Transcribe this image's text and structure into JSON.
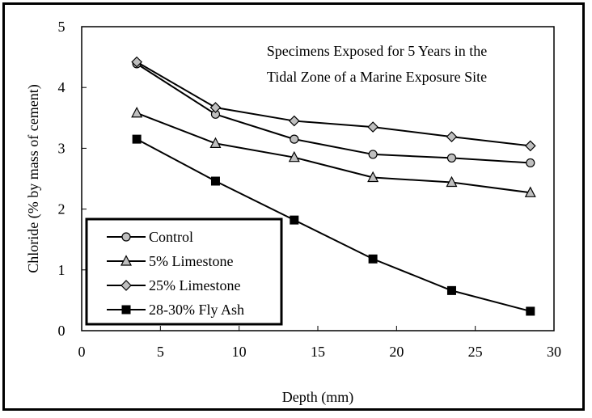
{
  "chart_data": {
    "type": "line",
    "annotation": [
      "Specimens Exposed for 5 Years in the",
      "Tidal Zone of a Marine Exposure Site"
    ],
    "xlabel": "Depth (mm)",
    "ylabel": "Chloride (% by mass of cement)",
    "xlim": [
      0,
      30
    ],
    "ylim": [
      0,
      5
    ],
    "xticks": [
      0,
      5,
      10,
      15,
      20,
      25,
      30
    ],
    "yticks": [
      0,
      1,
      2,
      3,
      4,
      5
    ],
    "grid": false,
    "legend_position": "bottom-left",
    "x": [
      3.5,
      8.5,
      13.5,
      18.5,
      23.5,
      28.5
    ],
    "series": [
      {
        "name": "Control",
        "marker": "circle",
        "values": [
          4.39,
          3.56,
          3.15,
          2.9,
          2.84,
          2.76
        ]
      },
      {
        "name": "5% Limestone",
        "marker": "triangle",
        "values": [
          3.58,
          3.08,
          2.85,
          2.52,
          2.44,
          2.27
        ]
      },
      {
        "name": "25% Limestone",
        "marker": "diamond",
        "values": [
          4.42,
          3.67,
          3.45,
          3.35,
          3.19,
          3.04
        ]
      },
      {
        "name": "28-30% Fly Ash",
        "marker": "square",
        "values": [
          3.15,
          2.46,
          1.82,
          1.18,
          0.66,
          0.32
        ]
      }
    ],
    "colors": {
      "line": "#000000",
      "marker_fill": "#bfbfbf",
      "square_fill": "#000000"
    }
  }
}
